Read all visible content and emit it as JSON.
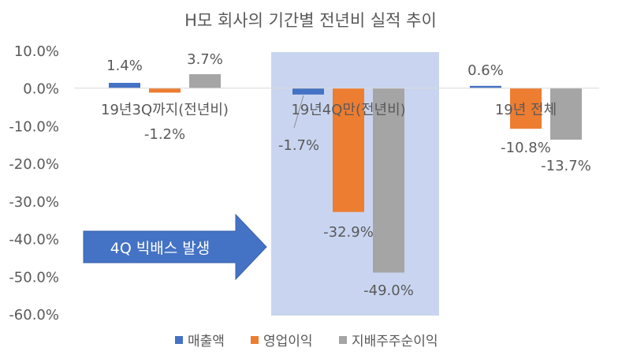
{
  "chart_data": {
    "type": "bar",
    "title": "H모 회사의 기간별 전년비 실적 추이",
    "categories": [
      "19년3Q까지(전년비)",
      "19년4Q만(전년비)",
      "19년 전체"
    ],
    "series": [
      {
        "name": "매출액",
        "values": [
          1.4,
          -1.7,
          0.6
        ],
        "labels": [
          "1.4%",
          "-1.7%",
          "0.6%"
        ]
      },
      {
        "name": "영업이익",
        "values": [
          -1.2,
          -32.9,
          -10.8
        ],
        "labels": [
          "-1.2%",
          "-32.9%",
          "-10.8%"
        ]
      },
      {
        "name": "지배주주순이익",
        "values": [
          3.7,
          -49.0,
          -13.7
        ],
        "labels": [
          "3.7%",
          "-49.0%",
          "-13.7%"
        ]
      }
    ],
    "ylim": [
      -60,
      10
    ],
    "yticks": [
      "10.0%",
      "0.0%",
      "-10.0%",
      "-20.0%",
      "-30.0%",
      "-40.0%",
      "-50.0%",
      "-60.0%"
    ],
    "grid": false,
    "legend": "bottom",
    "colors": [
      "#4472c4",
      "#ed7d31",
      "#a5a5a5"
    ],
    "highlight": {
      "category_index": 1,
      "color": "#c9d5f0"
    },
    "annotation": {
      "text": "4Q 빅배스 발생",
      "shape": "arrow-right",
      "color": "#4472c4"
    }
  }
}
